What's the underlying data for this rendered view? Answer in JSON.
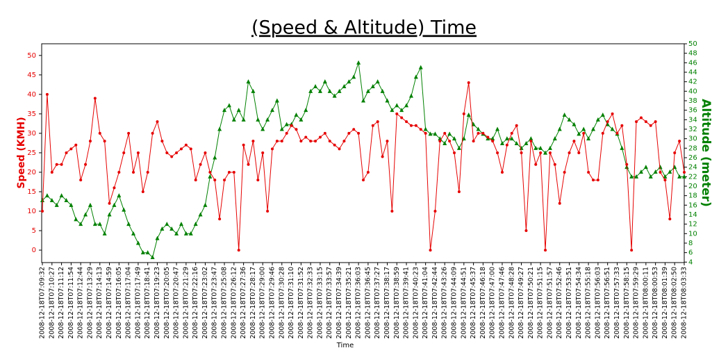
{
  "chart_data": {
    "type": "line",
    "title": "(Speed & Altitude) Time",
    "x_label": "Time",
    "y_label": "Speed (KMH)",
    "y2_label": "Altitude (meter)",
    "categories": [
      "2008-12-18T07:09:32",
      null,
      "2008-12-18T07:10:27",
      null,
      "2008-12-18T07:11:12",
      null,
      "2008-12-18T07:11:54",
      null,
      "2008-12-18T07:12:44",
      null,
      "2008-12-18T07:13:29",
      null,
      "2008-12-18T07:14:13",
      null,
      "2008-12-18T07:14:59",
      null,
      "2008-12-18T07:16:05",
      null,
      "2008-12-18T07:17:04",
      null,
      "2008-12-18T07:17:49",
      null,
      "2008-12-18T07:18:41",
      null,
      "2008-12-18T07:19:23",
      null,
      "2008-12-18T07:20:05",
      null,
      "2008-12-18T07:20:47",
      null,
      "2008-12-18T07:21:29",
      null,
      "2008-12-18T07:22:16",
      null,
      "2008-12-18T07:23:02",
      null,
      "2008-12-18T07:23:47",
      null,
      "2008-12-18T07:25:08",
      null,
      "2008-12-18T07:26:12",
      null,
      "2008-12-18T07:27:36",
      null,
      "2008-12-18T07:28:17",
      null,
      "2008-12-18T07:29:00",
      null,
      "2008-12-18T07:29:46",
      null,
      "2008-12-18T07:30:28",
      null,
      "2008-12-18T07:31:10",
      null,
      "2008-12-18T07:31:52",
      null,
      "2008-12-18T07:32:33",
      null,
      "2008-12-18T07:33:15",
      null,
      "2008-12-18T07:33:57",
      null,
      "2008-12-18T07:34:39",
      null,
      "2008-12-18T07:35:21",
      null,
      "2008-12-18T07:36:03",
      null,
      "2008-12-18T07:36:45",
      null,
      "2008-12-18T07:37:27",
      null,
      "2008-12-18T07:38:17",
      null,
      "2008-12-18T07:38:59",
      null,
      "2008-12-18T07:39:41",
      null,
      "2008-12-18T07:40:23",
      null,
      "2008-12-18T07:41:04",
      null,
      "2008-12-18T07:42:44",
      null,
      "2008-12-18T07:43:26",
      null,
      "2008-12-18T07:44:09",
      null,
      "2008-12-18T07:44:51",
      null,
      "2008-12-18T07:45:37",
      null,
      "2008-12-18T07:46:18",
      null,
      "2008-12-18T07:47:00",
      null,
      "2008-12-18T07:47:46",
      null,
      "2008-12-18T07:48:28",
      null,
      "2008-12-18T07:49:27",
      null,
      "2008-12-18T07:50:21",
      null,
      "2008-12-18T07:51:15",
      null,
      "2008-12-18T07:51:57",
      null,
      "2008-12-18T07:52:46",
      null,
      "2008-12-18T07:53:51",
      null,
      "2008-12-18T07:54:34",
      null,
      "2008-12-18T07:55:18",
      null,
      "2008-12-18T07:56:03",
      null,
      "2008-12-18T07:56:51",
      null,
      "2008-12-18T07:57:33",
      null,
      "2008-12-18T07:58:15",
      null,
      "2008-12-18T07:59:29",
      null,
      "2008-12-18T08:00:11",
      null,
      "2008-12-18T08:00:53",
      null,
      "2008-12-18T08:01:39",
      null,
      "2008-12-18T08:02:50",
      null,
      "2008-12-18T08:03:33"
    ],
    "series": [
      {
        "color": "#e60000",
        "marker": "circle",
        "values": [
          10,
          40,
          20,
          22,
          22,
          25,
          26,
          27,
          18,
          22,
          28,
          39,
          30,
          28,
          12,
          16,
          20,
          25,
          30,
          20,
          25,
          15,
          20,
          30,
          33,
          28,
          25,
          24,
          25,
          26,
          27,
          26,
          18,
          22,
          25,
          20,
          18,
          8,
          18,
          20,
          20,
          0,
          27,
          22,
          28,
          18,
          25,
          10,
          26,
          28,
          28,
          30,
          32,
          31,
          28,
          29,
          28,
          28,
          29,
          30,
          28,
          27,
          26,
          28,
          30,
          31,
          30,
          18,
          20,
          32,
          33,
          24,
          28,
          10,
          35,
          34,
          33,
          32,
          32,
          31,
          30,
          0,
          10,
          28,
          30,
          28,
          25,
          15,
          35,
          43,
          28,
          30,
          30,
          29,
          28,
          25,
          20,
          27,
          30,
          32,
          25,
          5,
          28,
          22,
          25,
          0,
          25,
          22,
          12,
          20,
          25,
          28,
          25,
          30,
          20,
          18,
          18,
          30,
          33,
          35,
          30,
          32,
          22,
          0,
          33,
          34,
          33,
          32,
          33,
          20,
          18,
          8,
          25,
          28,
          20
        ]
      },
      {
        "color": "#008000",
        "marker": "triangle",
        "axis": "y2",
        "values": [
          17,
          18,
          17,
          16,
          18,
          17,
          16,
          13,
          12,
          14,
          16,
          12,
          12,
          10,
          14,
          16,
          18,
          15,
          12,
          10,
          8,
          6,
          6,
          5,
          9,
          11,
          12,
          11,
          10,
          12,
          10,
          10,
          12,
          14,
          16,
          22,
          26,
          32,
          36,
          37,
          34,
          36,
          34,
          42,
          40,
          34,
          32,
          34,
          36,
          38,
          32,
          33,
          33,
          35,
          34,
          36,
          40,
          41,
          40,
          42,
          40,
          39,
          40,
          41,
          42,
          43,
          46,
          38,
          40,
          41,
          42,
          40,
          38,
          36,
          37,
          36,
          37,
          39,
          43,
          45,
          32,
          31,
          31,
          30,
          29,
          31,
          30,
          28,
          30,
          35,
          33,
          32,
          31,
          30,
          30,
          32,
          29,
          30,
          30,
          29,
          28,
          29,
          30,
          28,
          28,
          27,
          28,
          30,
          32,
          35,
          34,
          33,
          31,
          32,
          30,
          32,
          34,
          35,
          33,
          32,
          31,
          28,
          24,
          22,
          22,
          23,
          24,
          22,
          23,
          24,
          22,
          23,
          24,
          22,
          22
        ]
      }
    ],
    "ylim": [
      -3.2,
      53
    ],
    "yticks": [
      0,
      5,
      10,
      15,
      20,
      25,
      30,
      35,
      40,
      45,
      50
    ],
    "y2lim": [
      3.9,
      50
    ],
    "y2ticks": [
      4,
      6,
      8,
      10,
      12,
      14,
      16,
      18,
      20,
      22,
      24,
      26,
      28,
      30,
      32,
      34,
      36,
      38,
      40,
      42,
      44,
      46,
      48,
      50
    ],
    "y_color": "#e60000",
    "y2_color": "#008000"
  }
}
